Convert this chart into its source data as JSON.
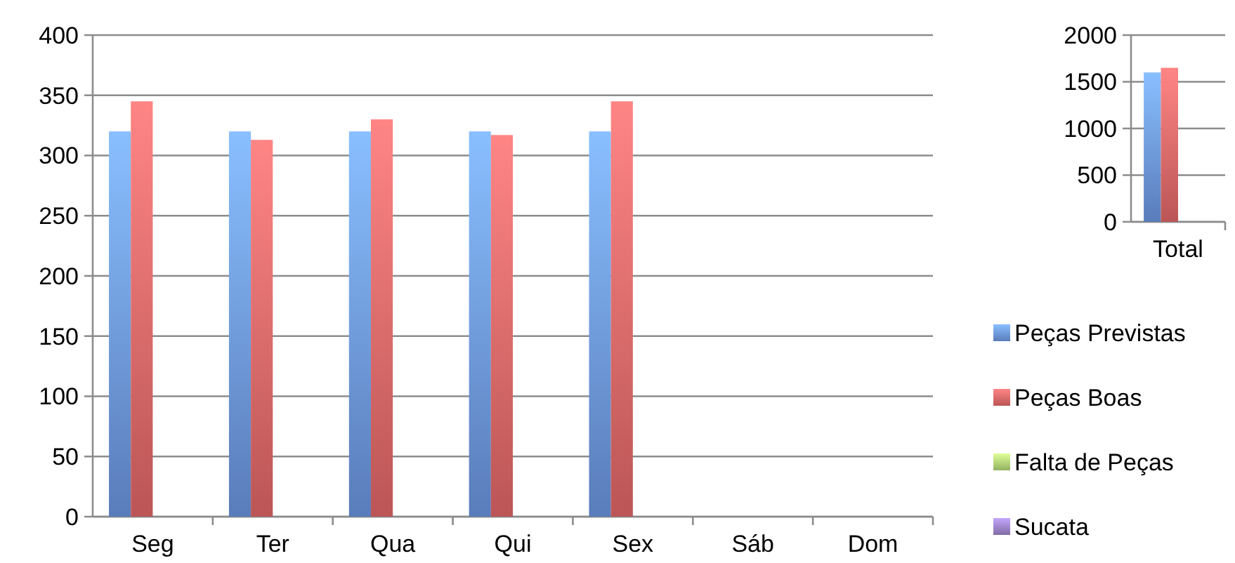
{
  "chart_data": [
    {
      "type": "bar",
      "categories": [
        "Seg",
        "Ter",
        "Qua",
        "Qui",
        "Sex",
        "Sáb",
        "Dom"
      ],
      "series": [
        {
          "name": "Peças Previstas",
          "color": "#6f9ae6",
          "values": [
            320,
            320,
            320,
            320,
            320,
            null,
            null
          ]
        },
        {
          "name": "Peças Boas",
          "color": "#e86b6b",
          "values": [
            345,
            313,
            330,
            317,
            345,
            null,
            null
          ]
        },
        {
          "name": "Falta de Peças",
          "color": "#b5dc7a",
          "values": [
            null,
            null,
            null,
            null,
            null,
            null,
            null
          ]
        },
        {
          "name": "Sucata",
          "color": "#9f86cc",
          "values": [
            null,
            null,
            null,
            null,
            null,
            null,
            null
          ]
        }
      ],
      "ylim": [
        0,
        400
      ],
      "yticks": [
        0,
        50,
        100,
        150,
        200,
        250,
        300,
        350,
        400
      ],
      "grid": "y",
      "legend": "right"
    },
    {
      "type": "bar",
      "categories": [
        "Total"
      ],
      "series": [
        {
          "color": "#6f9ae6",
          "values": [
            1600
          ]
        },
        {
          "color": "#e86b6b",
          "values": [
            1650
          ]
        },
        {
          "color": "#b5dc7a",
          "values": [
            null
          ]
        },
        {
          "color": "#9f86cc",
          "values": [
            null
          ]
        }
      ],
      "ylim": [
        0,
        2000
      ],
      "yticks": [
        0,
        500,
        1000,
        1500,
        2000
      ],
      "grid": "y"
    }
  ]
}
